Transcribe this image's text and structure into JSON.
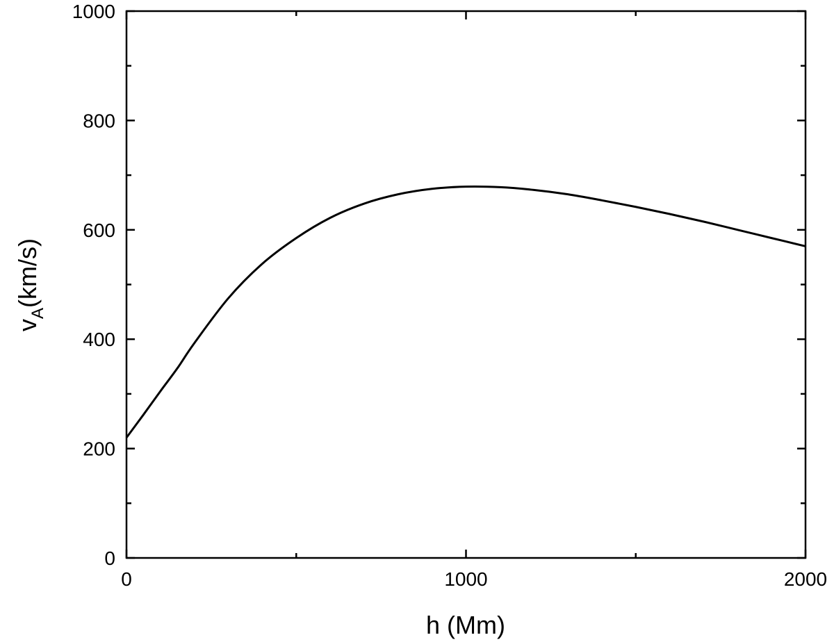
{
  "chart_data": {
    "type": "line",
    "title": "",
    "xlabel": "h (Mm)",
    "ylabel": {
      "main": "v",
      "subscript": "A",
      "suffix": "(km/s)"
    },
    "xlim": [
      0,
      2000
    ],
    "ylim": [
      0,
      1000
    ],
    "x_major_ticks": [
      0,
      1000,
      2000
    ],
    "x_minor_ticks": [
      500,
      1500
    ],
    "y_major_ticks": [
      0,
      200,
      400,
      600,
      800,
      1000
    ],
    "y_minor_ticks": [
      100,
      300,
      500,
      700,
      900
    ],
    "x_tick_labels": [
      "0",
      "1000",
      "2000"
    ],
    "y_tick_labels": [
      "0",
      "200",
      "400",
      "600",
      "800",
      "1000"
    ],
    "grid": false,
    "legend": "none",
    "series": [
      {
        "color": "#000000",
        "x": [
          0,
          50,
          100,
          150,
          200,
          300,
          400,
          500,
          600,
          700,
          800,
          900,
          1000,
          1100,
          1200,
          1300,
          1400,
          1500,
          1600,
          1700,
          1800,
          1900,
          2000
        ],
        "y": [
          220,
          262,
          305,
          347,
          393,
          475,
          538,
          585,
          622,
          648,
          665,
          675,
          679,
          678,
          673,
          665,
          654,
          642,
          629,
          615,
          600,
          585,
          570
        ]
      }
    ]
  }
}
